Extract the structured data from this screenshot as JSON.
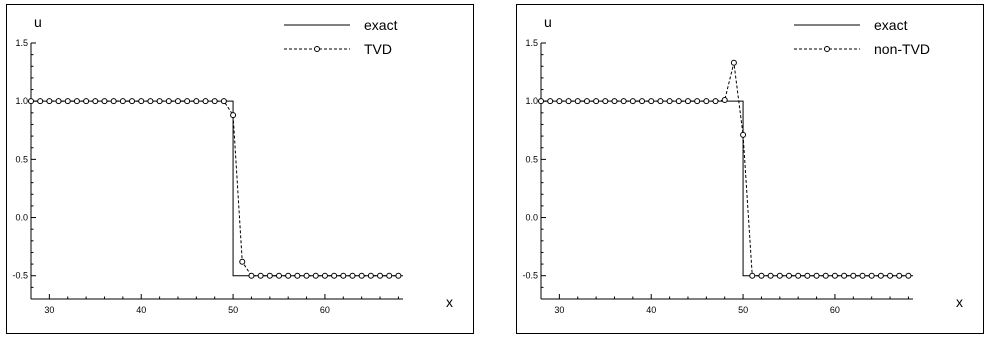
{
  "chart_data": [
    {
      "type": "line",
      "xlabel": "x",
      "ylabel": "u",
      "xlim": [
        28,
        68.5
      ],
      "ylim": [
        -0.7,
        1.5
      ],
      "x_ticks": [
        "30",
        "40",
        "50",
        "60"
      ],
      "y_ticks": [
        "1.5",
        "1.0",
        "0.5",
        "0.0",
        "-0.5"
      ],
      "legend_position": "top-right",
      "series": [
        {
          "name": "exact",
          "style": "solid",
          "x": [
            28,
            50,
            50,
            68.5
          ],
          "y": [
            1.0,
            1.0,
            -0.5,
            -0.5
          ]
        },
        {
          "name": "TVD",
          "style": "dashed-circle-markers",
          "x": [
            28,
            29,
            30,
            31,
            32,
            33,
            34,
            35,
            36,
            37,
            38,
            39,
            40,
            41,
            42,
            43,
            44,
            45,
            46,
            47,
            48,
            49,
            50,
            51,
            52,
            53,
            54,
            55,
            56,
            57,
            58,
            59,
            60,
            61,
            62,
            63,
            64,
            65,
            66,
            67,
            68
          ],
          "y": [
            1.0,
            1.0,
            1.0,
            1.0,
            1.0,
            1.0,
            1.0,
            1.0,
            1.0,
            1.0,
            1.0,
            1.0,
            1.0,
            1.0,
            1.0,
            1.0,
            1.0,
            1.0,
            1.0,
            1.0,
            1.0,
            1.0,
            0.88,
            -0.38,
            -0.5,
            -0.5,
            -0.5,
            -0.5,
            -0.5,
            -0.5,
            -0.5,
            -0.5,
            -0.5,
            -0.5,
            -0.5,
            -0.5,
            -0.5,
            -0.5,
            -0.5,
            -0.5,
            -0.5
          ]
        }
      ]
    },
    {
      "type": "line",
      "xlabel": "x",
      "ylabel": "u",
      "xlim": [
        28,
        68.5
      ],
      "ylim": [
        -0.7,
        1.5
      ],
      "x_ticks": [
        "30",
        "40",
        "50",
        "60"
      ],
      "y_ticks": [
        "1.5",
        "1.0",
        "0.5",
        "0.0",
        "-0.5"
      ],
      "legend_position": "top-right",
      "series": [
        {
          "name": "exact",
          "style": "solid",
          "x": [
            28,
            50,
            50,
            68.5
          ],
          "y": [
            1.0,
            1.0,
            -0.5,
            -0.5
          ]
        },
        {
          "name": "non-TVD",
          "style": "dashed-circle-markers",
          "x": [
            28,
            29,
            30,
            31,
            32,
            33,
            34,
            35,
            36,
            37,
            38,
            39,
            40,
            41,
            42,
            43,
            44,
            45,
            46,
            47,
            48,
            49,
            50,
            51,
            52,
            53,
            54,
            55,
            56,
            57,
            58,
            59,
            60,
            61,
            62,
            63,
            64,
            65,
            66,
            67,
            68
          ],
          "y": [
            1.0,
            1.0,
            1.0,
            1.0,
            1.0,
            1.0,
            1.0,
            1.0,
            1.0,
            1.0,
            1.0,
            1.0,
            1.0,
            1.0,
            1.0,
            1.0,
            1.0,
            1.0,
            1.0,
            1.0,
            1.01,
            1.33,
            0.71,
            -0.5,
            -0.5,
            -0.5,
            -0.5,
            -0.5,
            -0.5,
            -0.5,
            -0.5,
            -0.5,
            -0.5,
            -0.5,
            -0.5,
            -0.5,
            -0.5,
            -0.5,
            -0.5,
            -0.5,
            -0.5
          ]
        }
      ]
    }
  ]
}
